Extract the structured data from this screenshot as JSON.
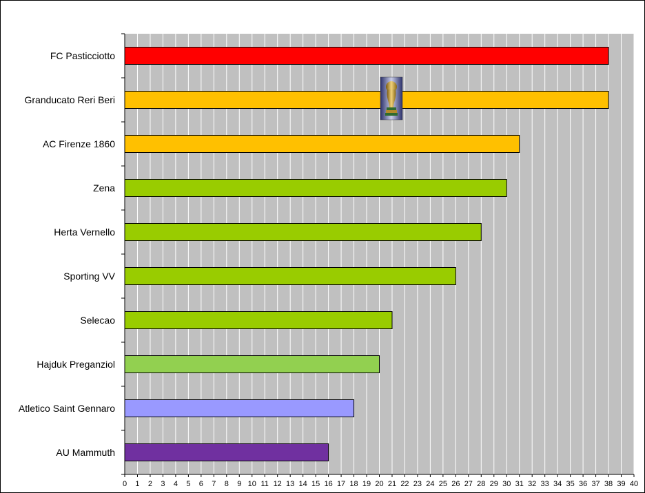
{
  "chart_data": {
    "type": "bar",
    "orientation": "horizontal",
    "categories": [
      "FC Pasticciotto",
      "Granducato Reri Beri",
      "AC Firenze 1860",
      "Zena",
      "Herta Vernello",
      "Sporting VV",
      "Selecao",
      "Hajduk Preganziol",
      "Atletico Saint Gennaro",
      "AU Mammuth"
    ],
    "values": [
      38,
      38,
      31,
      30,
      28,
      26,
      21,
      20,
      18,
      16
    ],
    "bar_colors": [
      "#ff0000",
      "#ffc000",
      "#ffc000",
      "#99cc00",
      "#99cc00",
      "#99cc00",
      "#99cc00",
      "#92d050",
      "#9999ff",
      "#7030a0"
    ],
    "x_ticks": [
      "0",
      "1",
      "2",
      "3",
      "4",
      "5",
      "6",
      "7",
      "8",
      "9",
      "10",
      "11",
      "12",
      "13",
      "14",
      "15",
      "16",
      "17",
      "18",
      "19",
      "20",
      "21",
      "22",
      "23",
      "24",
      "25",
      "26",
      "27",
      "28",
      "29",
      "30",
      "31",
      "32",
      "33",
      "34",
      "35",
      "36",
      "37",
      "38",
      "39",
      "40"
    ],
    "xlim": [
      0,
      40
    ],
    "grid": true,
    "plot_background": "#c0c0c0",
    "gridline_color": "#ffffff",
    "title": "",
    "xlabel": "",
    "ylabel": "",
    "legend": "none",
    "annotation_icon": "trophy-icon"
  }
}
